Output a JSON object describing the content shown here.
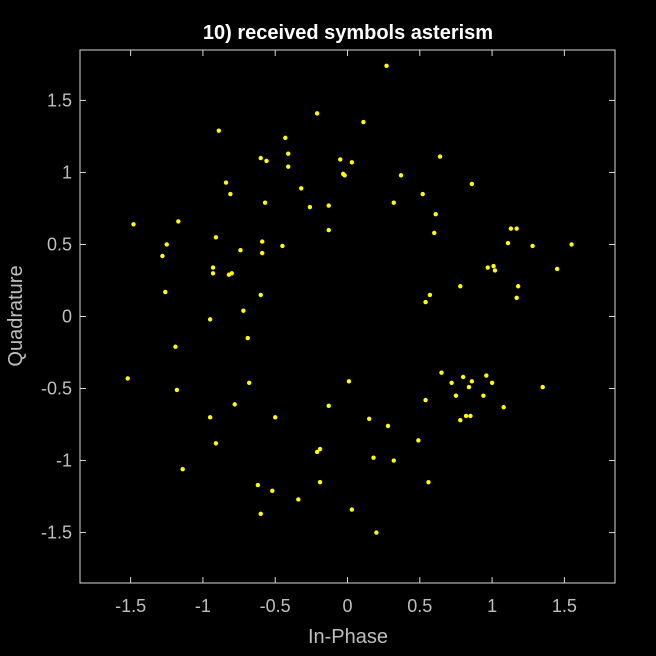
{
  "colors": {
    "background": "#000000",
    "axes": "#d9d9d9",
    "text": "#bfbfbf",
    "title": "#ffffff",
    "marker": "#ffff00"
  },
  "chart_data": {
    "type": "scatter",
    "title": "10) received symbols asterism",
    "xlabel": "In-Phase",
    "ylabel": "Quadrature",
    "xlim": [
      -1.85,
      1.85
    ],
    "ylim": [
      -1.85,
      1.85
    ],
    "grid": false,
    "legend": "none",
    "xticks": [
      -1.5,
      -1,
      -0.5,
      0,
      0.5,
      1,
      1.5
    ],
    "xtick_labels": [
      "-1.5",
      "-1",
      "-0.5",
      "0",
      "0.5",
      "1",
      "1.5"
    ],
    "yticks": [
      -1.5,
      -1,
      -0.5,
      0,
      0.5,
      1,
      1.5
    ],
    "ytick_labels": [
      "-1.5",
      "-1",
      "-0.5",
      "0",
      "0.5",
      "1",
      "1.5"
    ],
    "points": [
      [
        0.27,
        1.74
      ],
      [
        -0.89,
        1.29
      ],
      [
        0.11,
        1.35
      ],
      [
        -0.21,
        1.41
      ],
      [
        -0.43,
        1.24
      ],
      [
        -0.41,
        1.13
      ],
      [
        -0.6,
        1.1
      ],
      [
        -0.56,
        1.08
      ],
      [
        -0.41,
        1.04
      ],
      [
        -0.05,
        1.09
      ],
      [
        0.03,
        1.07
      ],
      [
        0.64,
        1.11
      ],
      [
        -0.03,
        0.99
      ],
      [
        -0.02,
        0.98
      ],
      [
        0.37,
        0.98
      ],
      [
        -0.84,
        0.93
      ],
      [
        -0.32,
        0.89
      ],
      [
        0.86,
        0.92
      ],
      [
        0.52,
        0.85
      ],
      [
        -0.81,
        0.85
      ],
      [
        -0.57,
        0.79
      ],
      [
        0.32,
        0.79
      ],
      [
        -0.26,
        0.76
      ],
      [
        -0.13,
        0.77
      ],
      [
        0.61,
        0.71
      ],
      [
        -1.48,
        0.64
      ],
      [
        -1.17,
        0.66
      ],
      [
        -0.13,
        0.6
      ],
      [
        1.13,
        0.61
      ],
      [
        1.17,
        0.61
      ],
      [
        0.6,
        0.58
      ],
      [
        -0.91,
        0.55
      ],
      [
        -1.25,
        0.5
      ],
      [
        -0.59,
        0.52
      ],
      [
        1.11,
        0.51
      ],
      [
        -0.45,
        0.49
      ],
      [
        -0.74,
        0.46
      ],
      [
        1.28,
        0.49
      ],
      [
        1.55,
        0.5
      ],
      [
        -1.28,
        0.42
      ],
      [
        -0.59,
        0.44
      ],
      [
        0.97,
        0.34
      ],
      [
        1.01,
        0.35
      ],
      [
        1.02,
        0.32
      ],
      [
        1.45,
        0.33
      ],
      [
        -0.93,
        0.34
      ],
      [
        -0.93,
        0.3
      ],
      [
        -0.82,
        0.29
      ],
      [
        -0.8,
        0.3
      ],
      [
        1.18,
        0.21
      ],
      [
        0.78,
        0.21
      ],
      [
        -1.26,
        0.17
      ],
      [
        0.57,
        0.15
      ],
      [
        -0.6,
        0.15
      ],
      [
        1.17,
        0.13
      ],
      [
        0.54,
        0.1
      ],
      [
        -0.72,
        0.04
      ],
      [
        -0.95,
        -0.02
      ],
      [
        -0.69,
        -0.15
      ],
      [
        -1.19,
        -0.21
      ],
      [
        0.65,
        -0.39
      ],
      [
        0.72,
        -0.46
      ],
      [
        0.8,
        -0.42
      ],
      [
        0.86,
        -0.45
      ],
      [
        0.96,
        -0.41
      ],
      [
        1.0,
        -0.46
      ],
      [
        -1.52,
        -0.43
      ],
      [
        0.01,
        -0.45
      ],
      [
        -0.68,
        -0.46
      ],
      [
        0.75,
        -0.55
      ],
      [
        0.84,
        -0.49
      ],
      [
        0.94,
        -0.55
      ],
      [
        1.35,
        -0.49
      ],
      [
        -1.18,
        -0.51
      ],
      [
        0.54,
        -0.58
      ],
      [
        -0.78,
        -0.61
      ],
      [
        -0.13,
        -0.62
      ],
      [
        1.08,
        -0.63
      ],
      [
        -0.95,
        -0.7
      ],
      [
        -0.5,
        -0.7
      ],
      [
        0.15,
        -0.71
      ],
      [
        0.82,
        -0.69
      ],
      [
        0.85,
        -0.69
      ],
      [
        0.78,
        -0.72
      ],
      [
        0.28,
        -0.76
      ],
      [
        0.49,
        -0.86
      ],
      [
        -0.91,
        -0.88
      ],
      [
        -0.19,
        -0.92
      ],
      [
        -0.21,
        -0.94
      ],
      [
        0.18,
        -0.98
      ],
      [
        0.32,
        -1.0
      ],
      [
        -1.14,
        -1.06
      ],
      [
        -0.19,
        -1.15
      ],
      [
        0.56,
        -1.15
      ],
      [
        -0.62,
        -1.17
      ],
      [
        -0.52,
        -1.21
      ],
      [
        -0.34,
        -1.27
      ],
      [
        -0.6,
        -1.37
      ],
      [
        0.03,
        -1.34
      ],
      [
        0.2,
        -1.5
      ]
    ]
  }
}
